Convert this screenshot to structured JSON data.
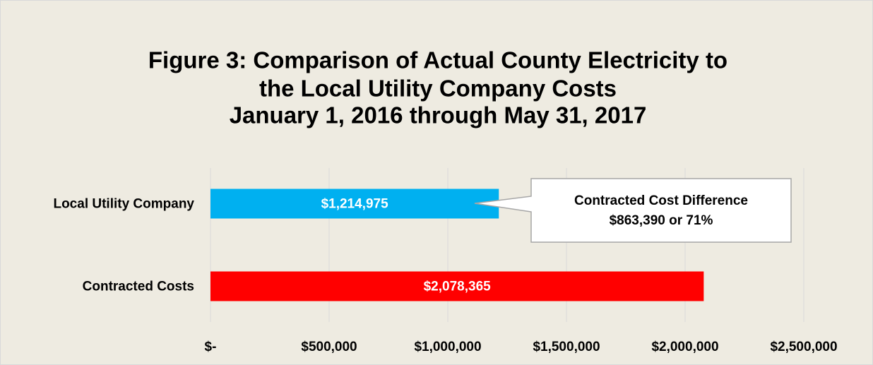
{
  "chart_data": {
    "type": "bar",
    "orientation": "horizontal",
    "title": [
      "Figure 3: Comparison of Actual County Electricity to",
      "the Local Utility Company Costs",
      "January 1, 2016 through May 31, 2017"
    ],
    "categories": [
      "Local Utility Company",
      "Contracted Costs"
    ],
    "values": [
      1214975,
      2078365
    ],
    "value_labels": [
      "$1,214,975",
      "$2,078,365"
    ],
    "colors": [
      "#00b0f0",
      "#ff0000"
    ],
    "xlim": [
      0,
      2500000
    ],
    "xticks": [
      {
        "value": 0,
        "label": "$-"
      },
      {
        "value": 500000,
        "label": "$500,000"
      },
      {
        "value": 1000000,
        "label": "$1,000,000"
      },
      {
        "value": 1500000,
        "label": "$1,500,000"
      },
      {
        "value": 2000000,
        "label": "$2,000,000"
      },
      {
        "value": 2500000,
        "label": "$2,500,000"
      }
    ],
    "grid": true,
    "annotation": [
      "Contracted Cost Difference",
      "$863,390 or 71%"
    ]
  }
}
